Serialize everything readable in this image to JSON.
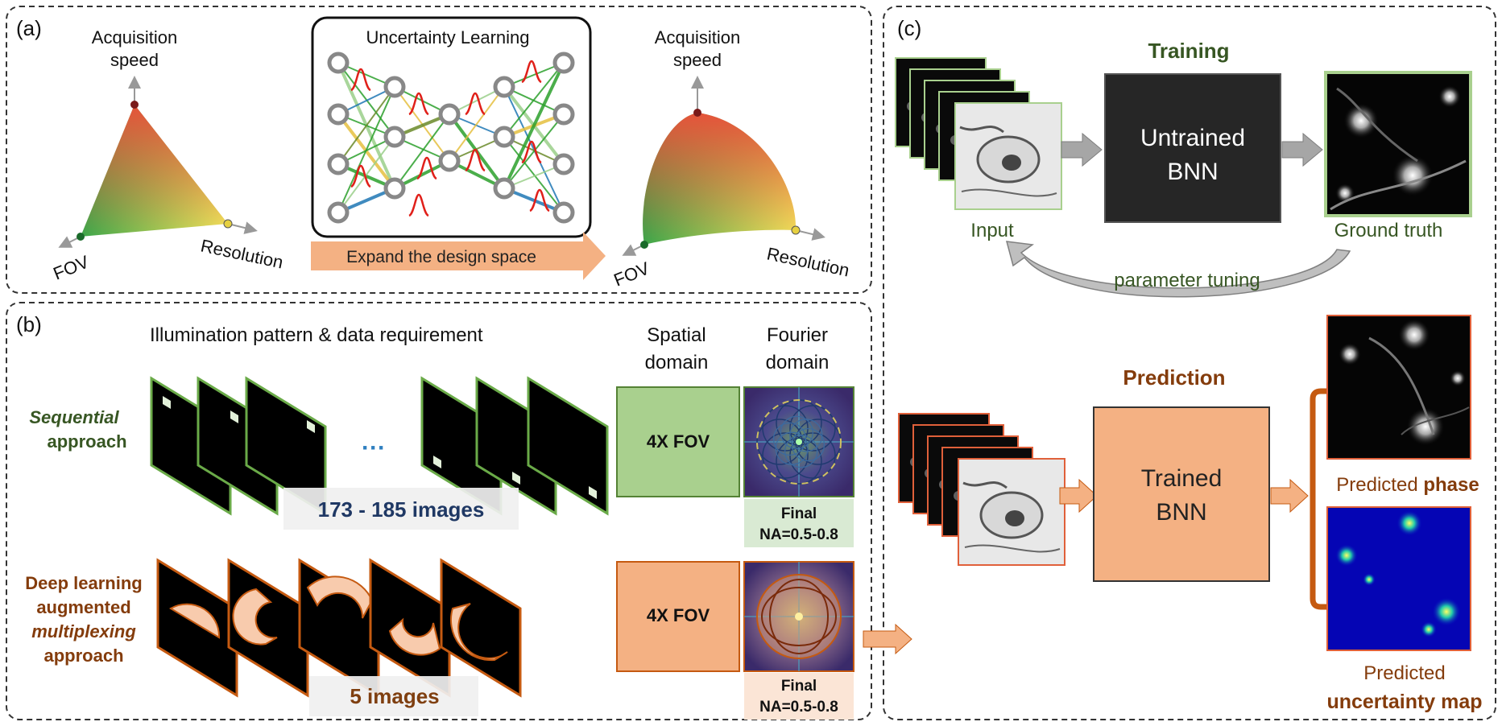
{
  "panel_a": {
    "label": "(a)",
    "left_axes": {
      "top": [
        "Acquisition",
        "speed"
      ],
      "left": "FOV",
      "right": "Resolution"
    },
    "network_title": "Uncertainty Learning",
    "expand_label": "Expand the design space",
    "right_axes": {
      "top": [
        "Acquisition",
        "speed"
      ],
      "left": "FOV",
      "right": "Resolution"
    },
    "colors": {
      "top": "#e6533a",
      "left": "#3aa64a",
      "right": "#f2e85c"
    }
  },
  "panel_b": {
    "label": "(b)",
    "header": "Illumination pattern & data requirement",
    "col_spatial": [
      "Spatial",
      "domain"
    ],
    "col_fourier": [
      "Fourier",
      "domain"
    ],
    "sequential": {
      "label_italic": "Sequential",
      "label_rest": "approach",
      "ellipsis": "···",
      "count": "173 - 185 images",
      "spatial_box": "4X FOV",
      "final": [
        "Final",
        "NA=0.5-0.8"
      ],
      "color": "#6aaa48"
    },
    "multiplexing": {
      "label_line1": "Deep learning",
      "label_line2": "augmented",
      "label_italic": "multiplexing",
      "label_rest": "approach",
      "count": "5 images",
      "spatial_box": "4X FOV",
      "final": [
        "Final",
        "NA=0.5-0.8"
      ],
      "color": "#d7692e"
    }
  },
  "panel_c": {
    "label": "(c)",
    "training_title": "Training",
    "untrained": [
      "Untrained",
      "BNN"
    ],
    "input_label": "Input",
    "ground_truth_label": "Ground truth",
    "tuning_label": "parameter tuning",
    "prediction_title": "Prediction",
    "trained": [
      "Trained",
      "BNN"
    ],
    "pred_phase_regular": "Predicted ",
    "pred_phase_bold": "phase",
    "pred_unc_line1": "Predicted",
    "pred_unc_line2": "uncertainty map",
    "colors": {
      "training": "#375623",
      "prediction": "#843c0c",
      "orange": "#f4b183",
      "green": "#a9d08e"
    }
  }
}
